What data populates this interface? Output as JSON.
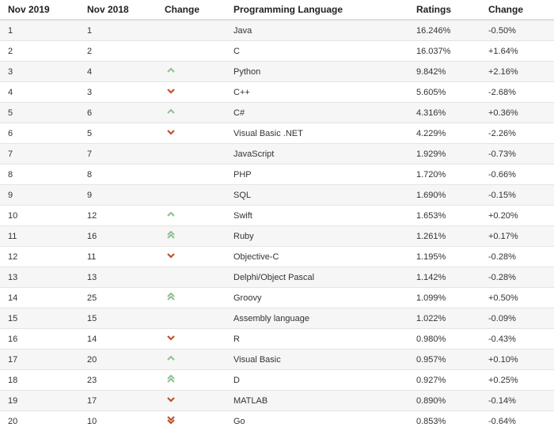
{
  "headers": [
    "Nov 2019",
    "Nov 2018",
    "Change",
    "Programming Language",
    "Ratings",
    "Change"
  ],
  "colors": {
    "up": "#8fbf8f",
    "down": "#c0502a"
  },
  "rows": [
    {
      "rank": "1",
      "prev": "1",
      "change": "none",
      "language": "Java",
      "rating": "16.246%",
      "delta": "-0.50%"
    },
    {
      "rank": "2",
      "prev": "2",
      "change": "none",
      "language": "C",
      "rating": "16.037%",
      "delta": "+1.64%"
    },
    {
      "rank": "3",
      "prev": "4",
      "change": "up",
      "language": "Python",
      "rating": "9.842%",
      "delta": "+2.16%"
    },
    {
      "rank": "4",
      "prev": "3",
      "change": "down",
      "language": "C++",
      "rating": "5.605%",
      "delta": "-2.68%"
    },
    {
      "rank": "5",
      "prev": "6",
      "change": "up",
      "language": "C#",
      "rating": "4.316%",
      "delta": "+0.36%"
    },
    {
      "rank": "6",
      "prev": "5",
      "change": "down",
      "language": "Visual Basic .NET",
      "rating": "4.229%",
      "delta": "-2.26%"
    },
    {
      "rank": "7",
      "prev": "7",
      "change": "none",
      "language": "JavaScript",
      "rating": "1.929%",
      "delta": "-0.73%"
    },
    {
      "rank": "8",
      "prev": "8",
      "change": "none",
      "language": "PHP",
      "rating": "1.720%",
      "delta": "-0.66%"
    },
    {
      "rank": "9",
      "prev": "9",
      "change": "none",
      "language": "SQL",
      "rating": "1.690%",
      "delta": "-0.15%"
    },
    {
      "rank": "10",
      "prev": "12",
      "change": "up",
      "language": "Swift",
      "rating": "1.653%",
      "delta": "+0.20%"
    },
    {
      "rank": "11",
      "prev": "16",
      "change": "double-up",
      "language": "Ruby",
      "rating": "1.261%",
      "delta": "+0.17%"
    },
    {
      "rank": "12",
      "prev": "11",
      "change": "down",
      "language": "Objective-C",
      "rating": "1.195%",
      "delta": "-0.28%"
    },
    {
      "rank": "13",
      "prev": "13",
      "change": "none",
      "language": "Delphi/Object Pascal",
      "rating": "1.142%",
      "delta": "-0.28%"
    },
    {
      "rank": "14",
      "prev": "25",
      "change": "double-up",
      "language": "Groovy",
      "rating": "1.099%",
      "delta": "+0.50%"
    },
    {
      "rank": "15",
      "prev": "15",
      "change": "none",
      "language": "Assembly language",
      "rating": "1.022%",
      "delta": "-0.09%"
    },
    {
      "rank": "16",
      "prev": "14",
      "change": "down",
      "language": "R",
      "rating": "0.980%",
      "delta": "-0.43%"
    },
    {
      "rank": "17",
      "prev": "20",
      "change": "up",
      "language": "Visual Basic",
      "rating": "0.957%",
      "delta": "+0.10%"
    },
    {
      "rank": "18",
      "prev": "23",
      "change": "double-up",
      "language": "D",
      "rating": "0.927%",
      "delta": "+0.25%"
    },
    {
      "rank": "19",
      "prev": "17",
      "change": "down",
      "language": "MATLAB",
      "rating": "0.890%",
      "delta": "-0.14%"
    },
    {
      "rank": "20",
      "prev": "10",
      "change": "double-down",
      "language": "Go",
      "rating": "0.853%",
      "delta": "-0.64%"
    }
  ]
}
